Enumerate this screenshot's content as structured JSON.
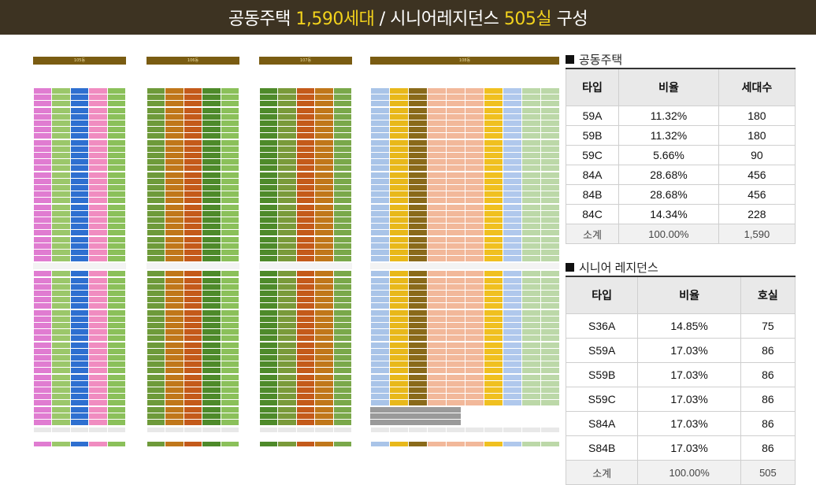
{
  "header": {
    "part1": "공동주택 ",
    "count1": "1,590세대",
    "part2": " / 시니어레지던스 ",
    "count2": "505실",
    "part3": " 구성"
  },
  "buildings": [
    {
      "label": "105동",
      "cols": [
        "#e07cd1",
        "#9bc76a",
        "#2e6fd0",
        "#f08cc0",
        "#8bc05a"
      ]
    },
    {
      "label": "106동",
      "cols": [
        "#6e9a3a",
        "#c0771a",
        "#c45a1a",
        "#4e8a2a",
        "#8bc05a"
      ]
    },
    {
      "label": "107동",
      "cols": [
        "#4e8a2a",
        "#7a9a3a",
        "#c45a1a",
        "#c0771a",
        "#7aa84a"
      ]
    },
    {
      "label": "108동",
      "cols": [
        "#a9c4e8",
        "#e8b81a",
        "#8a6a1a",
        "#f2b89a",
        "#f2b89a",
        "#f2b89a",
        "#f0c020",
        "#b0c8ec",
        "#bcd8a8",
        "#bcd8a8"
      ]
    }
  ],
  "section1": {
    "title": "공동주택",
    "headers": [
      "타입",
      "비율",
      "세대수"
    ],
    "rows": [
      [
        "59A",
        "11.32%",
        "180"
      ],
      [
        "59B",
        "11.32%",
        "180"
      ],
      [
        "59C",
        "5.66%",
        "90"
      ],
      [
        "84A",
        "28.68%",
        "456"
      ],
      [
        "84B",
        "28.68%",
        "456"
      ],
      [
        "84C",
        "14.34%",
        "228"
      ]
    ],
    "total": [
      "소계",
      "100.00%",
      "1,590"
    ]
  },
  "section2": {
    "title": "시니어 레지던스",
    "headers": [
      "타입",
      "비율",
      "호실"
    ],
    "rows": [
      [
        "S36A",
        "14.85%",
        "75"
      ],
      [
        "S59A",
        "17.03%",
        "86"
      ],
      [
        "S59B",
        "17.03%",
        "86"
      ],
      [
        "S59C",
        "17.03%",
        "86"
      ],
      [
        "S84A",
        "17.03%",
        "86"
      ],
      [
        "S84B",
        "17.03%",
        "86"
      ]
    ],
    "total": [
      "소계",
      "100.00%",
      "505"
    ]
  }
}
